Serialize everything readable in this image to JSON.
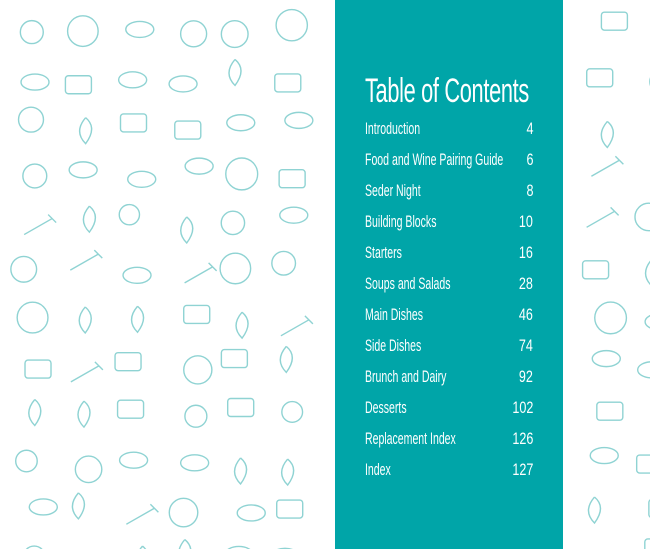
{
  "colors": {
    "panel": "#00a5a8",
    "doodle": "#8fd3d3",
    "text": "#ffffff"
  },
  "toc": {
    "title": "Table of Contents",
    "entries": [
      {
        "label": "Introduction",
        "page": "4"
      },
      {
        "label": "Food and Wine Pairing Guide",
        "page": "6"
      },
      {
        "label": "Seder Night",
        "page": "8"
      },
      {
        "label": "Building Blocks",
        "page": "10"
      },
      {
        "label": "Starters",
        "page": "16"
      },
      {
        "label": "Soups and Salads",
        "page": "28"
      },
      {
        "label": "Main Dishes",
        "page": "46"
      },
      {
        "label": "Side Dishes",
        "page": "74"
      },
      {
        "label": "Brunch and Dairy",
        "page": "92"
      },
      {
        "label": "Desserts",
        "page": "102"
      },
      {
        "label": "Replacement Index",
        "page": "126"
      },
      {
        "label": "Index",
        "page": "127"
      }
    ]
  }
}
